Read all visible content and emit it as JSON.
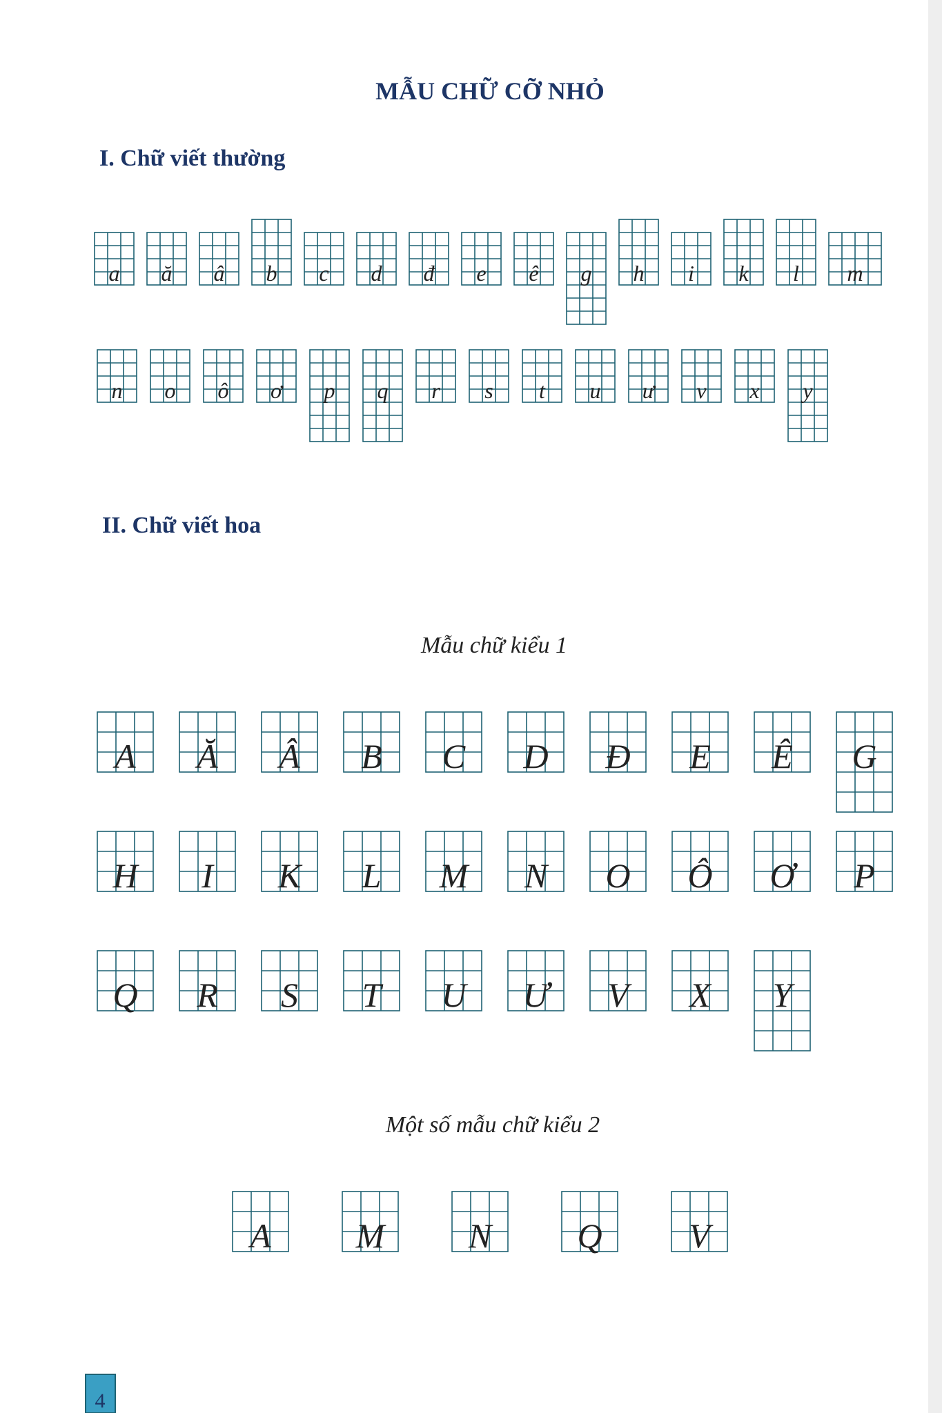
{
  "title": "MẪU CHỮ CỠ NHỎ",
  "section_1": {
    "heading": "I. Chữ viết thường",
    "letters": [
      "a",
      "ă",
      "â",
      "b",
      "c",
      "d",
      "đ",
      "e",
      "ê",
      "g",
      "h",
      "i",
      "k",
      "l",
      "m",
      "n",
      "o",
      "ô",
      "ơ",
      "p",
      "q",
      "r",
      "s",
      "t",
      "u",
      "ư",
      "v",
      "x",
      "y"
    ]
  },
  "section_2": {
    "heading": "II. Chữ viết hoa",
    "style_1": {
      "caption": "Mẫu chữ kiểu 1",
      "letters": [
        "A",
        "Ă",
        "Â",
        "B",
        "C",
        "D",
        "Đ",
        "E",
        "Ê",
        "G",
        "H",
        "I",
        "K",
        "L",
        "M",
        "N",
        "O",
        "Ô",
        "Ơ",
        "P",
        "Q",
        "R",
        "S",
        "T",
        "U",
        "Ư",
        "V",
        "X",
        "Y"
      ]
    },
    "style_2": {
      "caption": "Một số mẫu chữ kiểu 2",
      "letters": [
        "A",
        "M",
        "N",
        "Q",
        "V"
      ]
    }
  },
  "page_number": "4"
}
